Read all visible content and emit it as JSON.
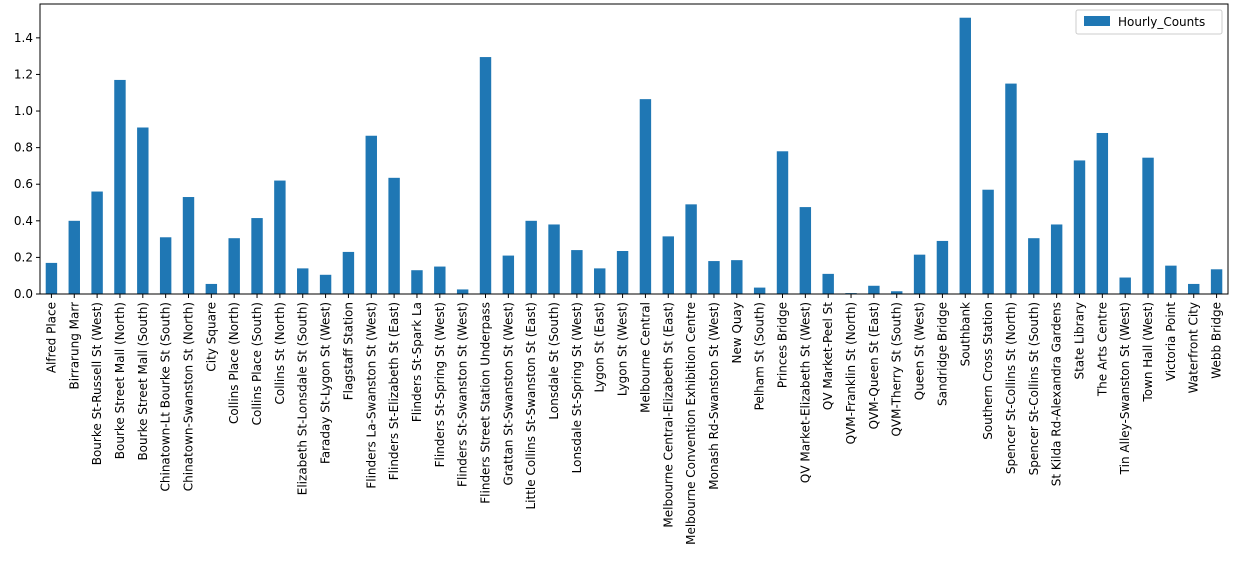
{
  "chart_data": {
    "type": "bar",
    "categories": [
      "Alfred Place",
      "Birrarung Marr",
      "Bourke St-Russell St (West)",
      "Bourke Street Mall (North)",
      "Bourke Street Mall (South)",
      "Chinatown-Lt Bourke St (South)",
      "Chinatown-Swanston St (North)",
      "City Square",
      "Collins Place (North)",
      "Collins Place (South)",
      "Collins St (North)",
      "Elizabeth St-Lonsdale St (South)",
      "Faraday St-Lygon St (West)",
      "Flagstaff Station",
      "Flinders La-Swanston St (West)",
      "Flinders St-Elizabeth St (East)",
      "Flinders St-Spark La",
      "Flinders St-Spring St (West)",
      "Flinders St-Swanston St (West)",
      "Flinders Street Station Underpass",
      "Grattan St-Swanston St (West)",
      "Little Collins St-Swanston St (East)",
      "Lonsdale St (South)",
      "Lonsdale St-Spring St (West)",
      "Lygon St (East)",
      "Lygon St (West)",
      "Melbourne Central",
      "Melbourne Central-Elizabeth St (East)",
      "Melbourne Convention Exhibition Centre",
      "Monash Rd-Swanston St (West)",
      "New Quay",
      "Pelham St (South)",
      "Princes Bridge",
      "QV Market-Elizabeth St (West)",
      "QV Market-Peel St",
      "QVM-Franklin St (North)",
      "QVM-Queen St (East)",
      "QVM-Therry St (South)",
      "Queen St (West)",
      "Sandridge Bridge",
      "Southbank",
      "Southern Cross Station",
      "Spencer St-Collins St (North)",
      "Spencer St-Collins St (South)",
      "St Kilda Rd-Alexandra Gardens",
      "State Library",
      "The Arts Centre",
      "Tin Alley-Swanston St (West)",
      "Town Hall (West)",
      "Victoria Point",
      "Waterfront City",
      "Webb Bridge"
    ],
    "series": [
      {
        "name": "Hourly_Counts",
        "color": "#1f77b4",
        "values": [
          0.17,
          0.4,
          0.56,
          1.17,
          0.91,
          0.31,
          0.53,
          0.055,
          0.305,
          0.415,
          0.62,
          0.14,
          0.105,
          0.23,
          0.865,
          0.635,
          0.13,
          0.15,
          0.025,
          1.295,
          0.21,
          0.4,
          0.38,
          0.24,
          0.14,
          0.235,
          1.065,
          0.315,
          0.49,
          0.18,
          0.185,
          0.035,
          0.78,
          0.475,
          0.11,
          0.005,
          0.045,
          0.015,
          0.215,
          0.29,
          1.51,
          0.57,
          1.15,
          0.305,
          0.38,
          0.73,
          0.88,
          0.09,
          0.745,
          0.155,
          0.055,
          0.135
        ]
      }
    ],
    "title": "",
    "xlabel": "",
    "ylabel": "",
    "ylim": [
      0,
      1.585
    ],
    "yticks": [
      "0.0",
      "0.2",
      "0.4",
      "0.6",
      "0.8",
      "1.0",
      "1.2",
      "1.4"
    ],
    "legend": {
      "position": "top-right",
      "entries": [
        "Hourly_Counts"
      ]
    },
    "grid": false
  }
}
